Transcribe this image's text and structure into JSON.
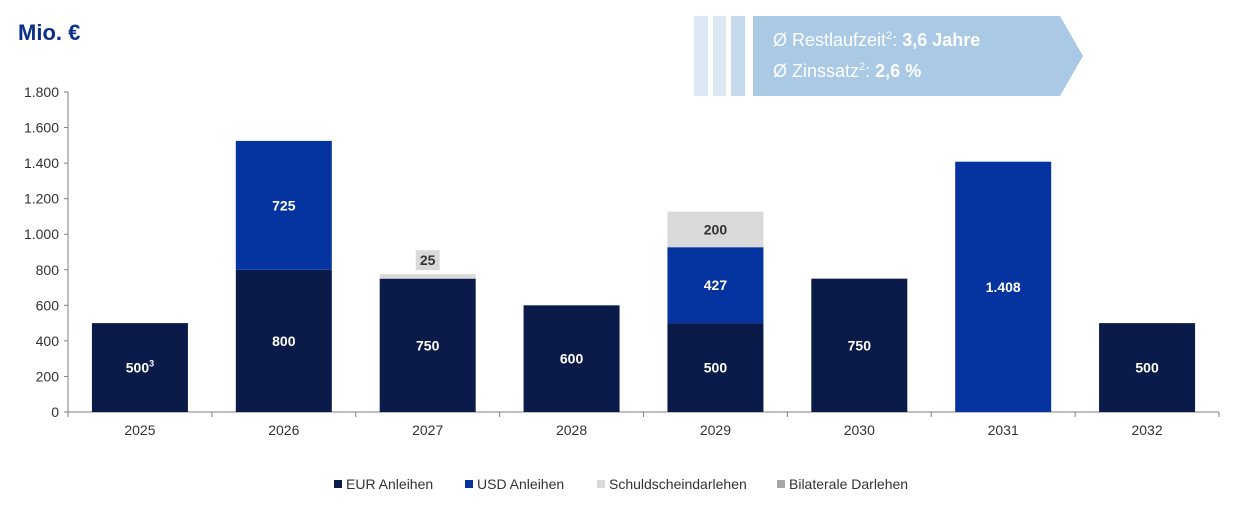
{
  "header": {
    "unit_label": "Mio. €",
    "info_line1_label": "Ø Restlaufzeit",
    "info_line1_sup": "2",
    "info_line1_value": "3,6 Jahre",
    "info_line2_label": "Ø Zinssatz",
    "info_line2_sup": "2",
    "info_line2_value": "2,6 %"
  },
  "colors": {
    "eur": "#0b1b49",
    "usd": "#0533a0",
    "schuld": "#d9d9d9",
    "bilateral": "#a6a6a6",
    "banner": "#a9c9e4",
    "banner_stripe": "#dce8f3"
  },
  "chart_data": {
    "type": "bar",
    "stacked": true,
    "categories": [
      "2025",
      "2026",
      "2027",
      "2028",
      "2029",
      "2030",
      "2031",
      "2032"
    ],
    "series": [
      {
        "name": "EUR Anleihen",
        "values": [
          500,
          800,
          750,
          600,
          500,
          750,
          0,
          500
        ]
      },
      {
        "name": "USD Anleihen",
        "values": [
          0,
          725,
          0,
          0,
          427,
          0,
          1408,
          0
        ]
      },
      {
        "name": "Schuldscheindarlehen",
        "values": [
          0,
          0,
          25,
          0,
          200,
          0,
          0,
          0
        ]
      },
      {
        "name": "Bilaterale Darlehen",
        "values": [
          0,
          0,
          0,
          0,
          0,
          0,
          0,
          0
        ]
      }
    ],
    "data_labels": [
      {
        "category": "2025",
        "series": "EUR Anleihen",
        "text": "500",
        "sup": "3"
      },
      {
        "category": "2026",
        "series": "EUR Anleihen",
        "text": "800"
      },
      {
        "category": "2026",
        "series": "USD Anleihen",
        "text": "725"
      },
      {
        "category": "2027",
        "series": "EUR Anleihen",
        "text": "750"
      },
      {
        "category": "2027",
        "series": "Schuldscheindarlehen",
        "text": "25"
      },
      {
        "category": "2028",
        "series": "EUR Anleihen",
        "text": "600"
      },
      {
        "category": "2029",
        "series": "EUR Anleihen",
        "text": "500"
      },
      {
        "category": "2029",
        "series": "USD Anleihen",
        "text": "427"
      },
      {
        "category": "2029",
        "series": "Schuldscheindarlehen",
        "text": "200"
      },
      {
        "category": "2030",
        "series": "EUR Anleihen",
        "text": "750"
      },
      {
        "category": "2031",
        "series": "USD Anleihen",
        "text": "1.408"
      },
      {
        "category": "2032",
        "series": "EUR Anleihen",
        "text": "500"
      }
    ],
    "ylim": [
      0,
      1800
    ],
    "yticks": [
      0,
      200,
      400,
      600,
      800,
      1000,
      1200,
      1400,
      1600,
      1800
    ],
    "ytick_labels": [
      "0",
      "200",
      "400",
      "600",
      "800",
      "1.000",
      "1.200",
      "1.400",
      "1.600",
      "1.800"
    ],
    "grid": false,
    "legend_position": "bottom"
  }
}
